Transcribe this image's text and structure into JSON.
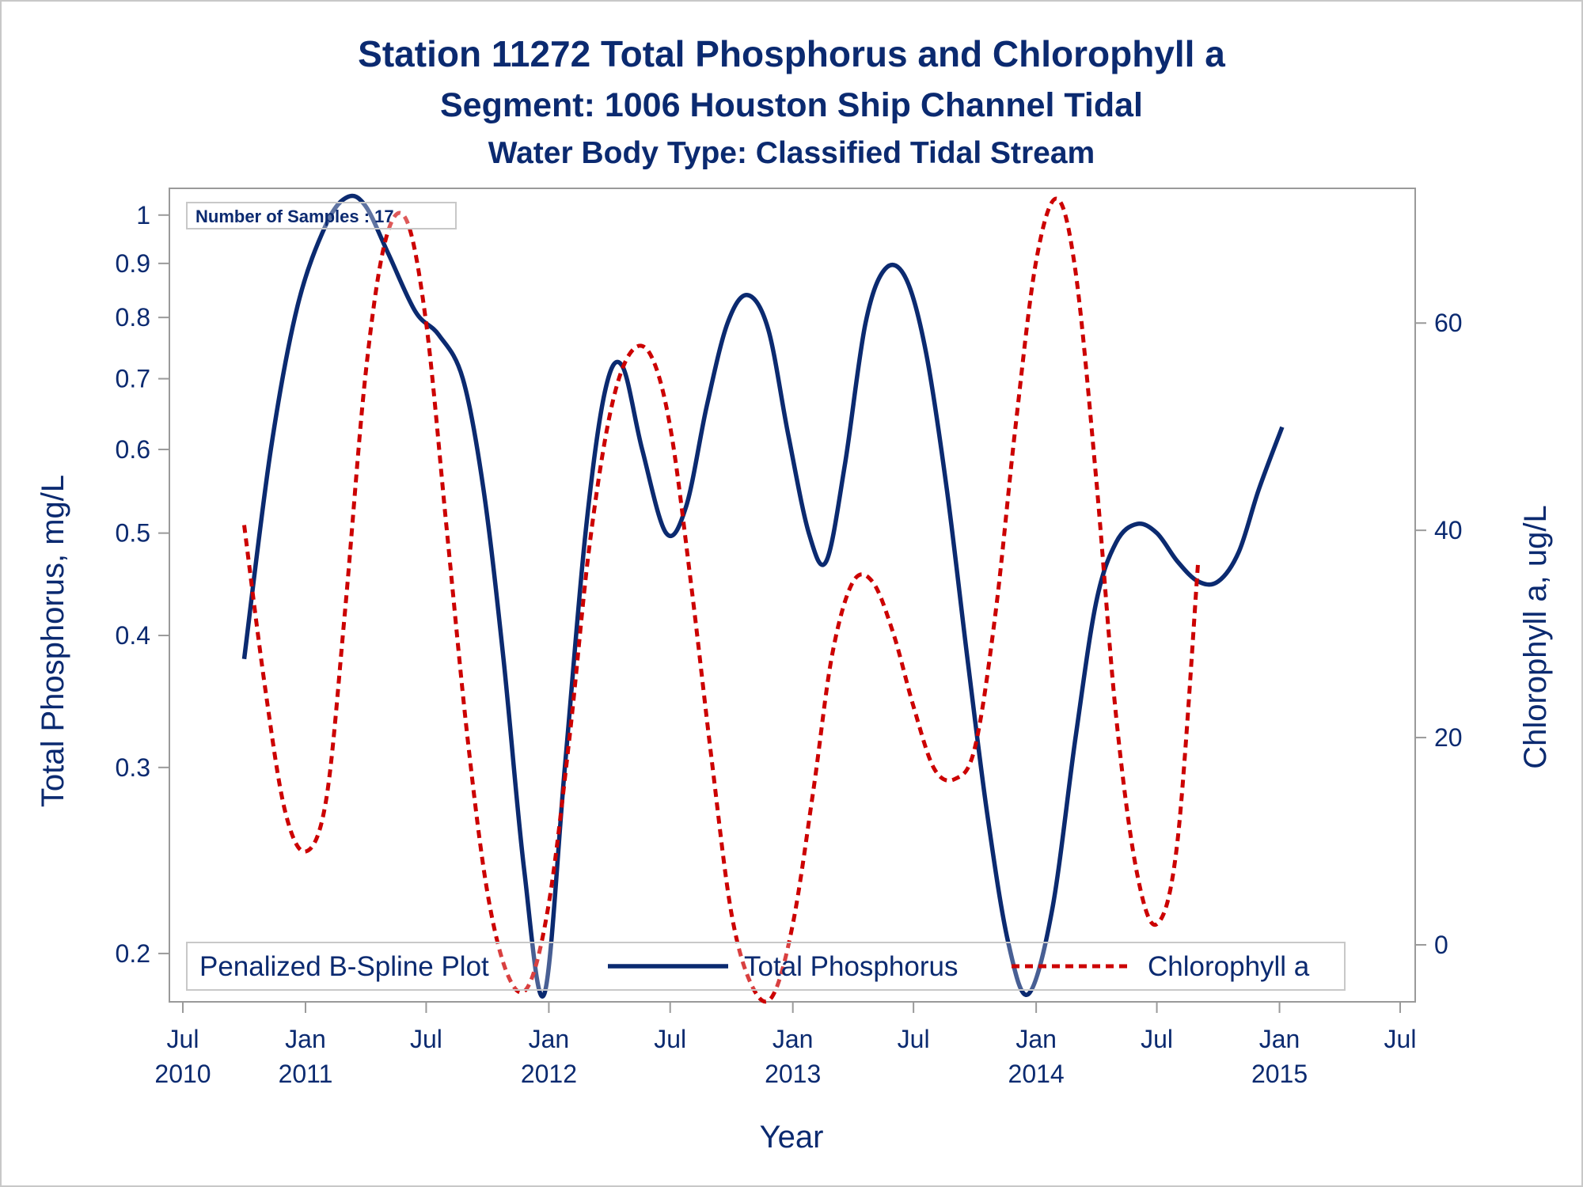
{
  "chart_data": {
    "type": "line",
    "title": "Station 11272  Total Phosphorus and Chlorophyll a",
    "subtitle": "Segment: 1006  Houston Ship Channel Tidal",
    "subtitle2": "Water Body Type: Classified Tidal Stream",
    "xlabel": "Year",
    "ylabel_left": "Total Phosphorus, mg/L",
    "ylabel_right": "Chlorophyll a, ug/L",
    "x_ticks": [
      {
        "date": "2010-07-01",
        "month": "Jul",
        "year": "2010"
      },
      {
        "date": "2011-01-01",
        "month": "Jan",
        "year": "2011"
      },
      {
        "date": "2011-07-01",
        "month": "Jul",
        "year": ""
      },
      {
        "date": "2012-01-01",
        "month": "Jan",
        "year": "2012"
      },
      {
        "date": "2012-07-01",
        "month": "Jul",
        "year": ""
      },
      {
        "date": "2013-01-01",
        "month": "Jan",
        "year": "2013"
      },
      {
        "date": "2013-07-01",
        "month": "Jul",
        "year": ""
      },
      {
        "date": "2014-01-01",
        "month": "Jan",
        "year": "2014"
      },
      {
        "date": "2014-07-01",
        "month": "Jul",
        "year": ""
      },
      {
        "date": "2015-01-01",
        "month": "Jan",
        "year": "2015"
      },
      {
        "date": "2015-07-01",
        "month": "Jul",
        "year": ""
      }
    ],
    "x_range": [
      "2010-07-01",
      "2015-07-01"
    ],
    "y_left_scale": "log",
    "y_left_range": [
      0.18,
      1.06
    ],
    "y_left_ticks": [
      0.2,
      0.3,
      0.4,
      0.5,
      0.6,
      0.7,
      0.8,
      0.9,
      1
    ],
    "y_right_range": [
      -5.5,
      73
    ],
    "y_right_ticks": [
      0,
      20,
      40,
      60
    ],
    "annotation": "Number of Samples : 17",
    "legend": {
      "title": "Penalized B-Spline Plot",
      "placement": "bottom-inside",
      "entries": [
        "Total Phosphorus",
        "Chlorophyll a"
      ]
    },
    "grid": false,
    "series": [
      {
        "name": "Total Phosphorus",
        "axis": "left",
        "color": "#0b2a70",
        "style": "solid",
        "points": [
          {
            "x": "2010-10-01",
            "y": 0.38
          },
          {
            "x": "2010-11-10",
            "y": 0.6
          },
          {
            "x": "2010-12-20",
            "y": 0.82
          },
          {
            "x": "2011-02-01",
            "y": 0.98
          },
          {
            "x": "2011-03-05",
            "y": 1.04
          },
          {
            "x": "2011-04-01",
            "y": 1.02
          },
          {
            "x": "2011-05-05",
            "y": 0.92
          },
          {
            "x": "2011-06-15",
            "y": 0.81
          },
          {
            "x": "2011-07-20",
            "y": 0.77
          },
          {
            "x": "2011-08-25",
            "y": 0.7
          },
          {
            "x": "2011-09-25",
            "y": 0.55
          },
          {
            "x": "2011-10-25",
            "y": 0.38
          },
          {
            "x": "2011-11-25",
            "y": 0.24
          },
          {
            "x": "2011-12-25",
            "y": 0.183
          },
          {
            "x": "2012-01-25",
            "y": 0.3
          },
          {
            "x": "2012-02-25",
            "y": 0.5
          },
          {
            "x": "2012-03-25",
            "y": 0.68
          },
          {
            "x": "2012-04-20",
            "y": 0.72
          },
          {
            "x": "2012-05-20",
            "y": 0.6
          },
          {
            "x": "2012-06-25",
            "y": 0.5
          },
          {
            "x": "2012-07-25",
            "y": 0.53
          },
          {
            "x": "2012-08-25",
            "y": 0.66
          },
          {
            "x": "2012-09-25",
            "y": 0.79
          },
          {
            "x": "2012-10-25",
            "y": 0.84
          },
          {
            "x": "2012-11-25",
            "y": 0.78
          },
          {
            "x": "2012-12-25",
            "y": 0.62
          },
          {
            "x": "2013-01-25",
            "y": 0.5
          },
          {
            "x": "2013-02-20",
            "y": 0.47
          },
          {
            "x": "2013-03-20",
            "y": 0.58
          },
          {
            "x": "2013-04-20",
            "y": 0.79
          },
          {
            "x": "2013-05-20",
            "y": 0.89
          },
          {
            "x": "2013-06-20",
            "y": 0.87
          },
          {
            "x": "2013-07-20",
            "y": 0.74
          },
          {
            "x": "2013-08-20",
            "y": 0.55
          },
          {
            "x": "2013-09-20",
            "y": 0.38
          },
          {
            "x": "2013-10-20",
            "y": 0.27
          },
          {
            "x": "2013-11-20",
            "y": 0.205
          },
          {
            "x": "2013-12-20",
            "y": 0.183
          },
          {
            "x": "2014-01-25",
            "y": 0.22
          },
          {
            "x": "2014-03-01",
            "y": 0.32
          },
          {
            "x": "2014-04-01",
            "y": 0.43
          },
          {
            "x": "2014-05-01",
            "y": 0.49
          },
          {
            "x": "2014-06-01",
            "y": 0.51
          },
          {
            "x": "2014-07-01",
            "y": 0.5
          },
          {
            "x": "2014-08-01",
            "y": 0.47
          },
          {
            "x": "2014-09-01",
            "y": 0.45
          },
          {
            "x": "2014-10-01",
            "y": 0.45
          },
          {
            "x": "2014-11-01",
            "y": 0.48
          },
          {
            "x": "2014-12-01",
            "y": 0.55
          },
          {
            "x": "2015-01-05",
            "y": 0.63
          }
        ]
      },
      {
        "name": "Chlorophyll a",
        "axis": "right",
        "color": "#cc0000",
        "style": "dashed",
        "points": [
          {
            "x": "2010-10-01",
            "y": 40.5
          },
          {
            "x": "2010-11-01",
            "y": 25
          },
          {
            "x": "2010-12-01",
            "y": 13
          },
          {
            "x": "2011-01-01",
            "y": 9
          },
          {
            "x": "2011-02-01",
            "y": 14
          },
          {
            "x": "2011-03-01",
            "y": 32
          },
          {
            "x": "2011-04-01",
            "y": 55
          },
          {
            "x": "2011-05-01",
            "y": 68
          },
          {
            "x": "2011-06-01",
            "y": 70
          },
          {
            "x": "2011-07-01",
            "y": 60
          },
          {
            "x": "2011-08-01",
            "y": 40
          },
          {
            "x": "2011-09-01",
            "y": 20
          },
          {
            "x": "2011-10-01",
            "y": 5
          },
          {
            "x": "2011-11-01",
            "y": -3
          },
          {
            "x": "2011-12-01",
            "y": -4
          },
          {
            "x": "2012-01-01",
            "y": 4
          },
          {
            "x": "2012-02-01",
            "y": 20
          },
          {
            "x": "2012-03-01",
            "y": 38
          },
          {
            "x": "2012-04-01",
            "y": 51
          },
          {
            "x": "2012-05-01",
            "y": 57
          },
          {
            "x": "2012-06-01",
            "y": 57
          },
          {
            "x": "2012-07-01",
            "y": 50
          },
          {
            "x": "2012-08-01",
            "y": 35
          },
          {
            "x": "2012-09-01",
            "y": 18
          },
          {
            "x": "2012-10-01",
            "y": 3
          },
          {
            "x": "2012-11-01",
            "y": -4
          },
          {
            "x": "2012-12-01",
            "y": -5
          },
          {
            "x": "2013-01-01",
            "y": 2
          },
          {
            "x": "2013-02-01",
            "y": 15
          },
          {
            "x": "2013-03-01",
            "y": 28
          },
          {
            "x": "2013-04-01",
            "y": 35
          },
          {
            "x": "2013-05-01",
            "y": 35
          },
          {
            "x": "2013-06-01",
            "y": 30
          },
          {
            "x": "2013-07-01",
            "y": 23
          },
          {
            "x": "2013-08-01",
            "y": 17
          },
          {
            "x": "2013-09-01",
            "y": 16
          },
          {
            "x": "2013-10-01",
            "y": 19
          },
          {
            "x": "2013-11-01",
            "y": 32
          },
          {
            "x": "2013-12-01",
            "y": 50
          },
          {
            "x": "2014-01-01",
            "y": 66
          },
          {
            "x": "2014-02-01",
            "y": 72
          },
          {
            "x": "2014-03-01",
            "y": 65
          },
          {
            "x": "2014-04-01",
            "y": 45
          },
          {
            "x": "2014-05-01",
            "y": 22
          },
          {
            "x": "2014-06-01",
            "y": 7
          },
          {
            "x": "2014-07-01",
            "y": 2
          },
          {
            "x": "2014-08-01",
            "y": 10
          },
          {
            "x": "2014-09-01",
            "y": 37
          }
        ]
      }
    ]
  }
}
